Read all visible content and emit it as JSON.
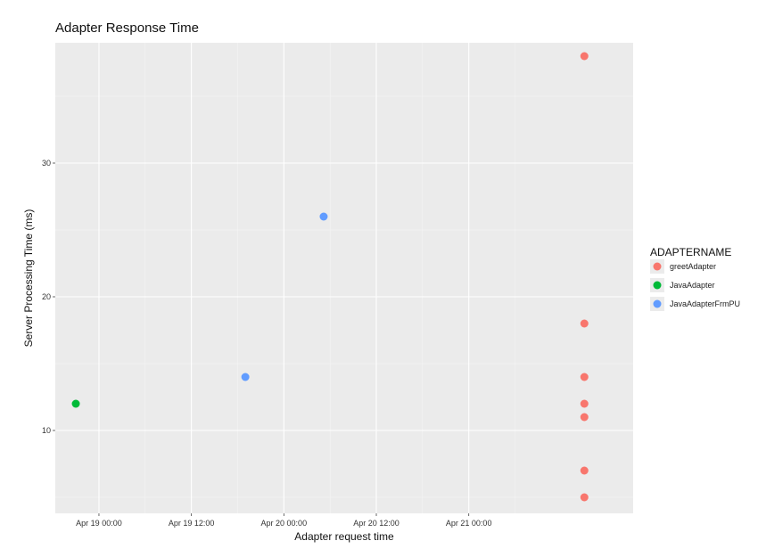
{
  "chart_data": {
    "type": "scatter",
    "title": "Adapter Response Time",
    "xlabel": "Adapter request time",
    "ylabel": "Server Processing Time (ms)",
    "x_ticks": [
      "Apr 19 00:00",
      "Apr 19 12:00",
      "Apr 20 00:00",
      "Apr 20 12:00",
      "Apr 21 00:00"
    ],
    "y_ticks": [
      10,
      20,
      30
    ],
    "xlim": [
      "2018-04-18 18:20",
      "2018-04-21 21:20"
    ],
    "ylim": [
      3.8,
      39.0
    ],
    "grid": true,
    "legend": {
      "title": "ADAPTERNAME",
      "position": "right"
    },
    "series": [
      {
        "name": "greetAdapter",
        "color": "#F8766D",
        "points": [
          {
            "x": "2018-04-21 15:00",
            "y": 38
          },
          {
            "x": "2018-04-21 15:00",
            "y": 18
          },
          {
            "x": "2018-04-21 15:00",
            "y": 14
          },
          {
            "x": "2018-04-21 15:00",
            "y": 12
          },
          {
            "x": "2018-04-21 15:00",
            "y": 11
          },
          {
            "x": "2018-04-21 15:00",
            "y": 7
          },
          {
            "x": "2018-04-21 15:00",
            "y": 5
          }
        ]
      },
      {
        "name": "JavaAdapter",
        "color": "#00BA38",
        "points": [
          {
            "x": "2018-04-18 21:00",
            "y": 12
          }
        ]
      },
      {
        "name": "JavaAdapterFrmPU",
        "color": "#619CFF",
        "points": [
          {
            "x": "2018-04-19 19:00",
            "y": 14
          },
          {
            "x": "2018-04-20 05:10",
            "y": 26
          }
        ]
      }
    ]
  }
}
